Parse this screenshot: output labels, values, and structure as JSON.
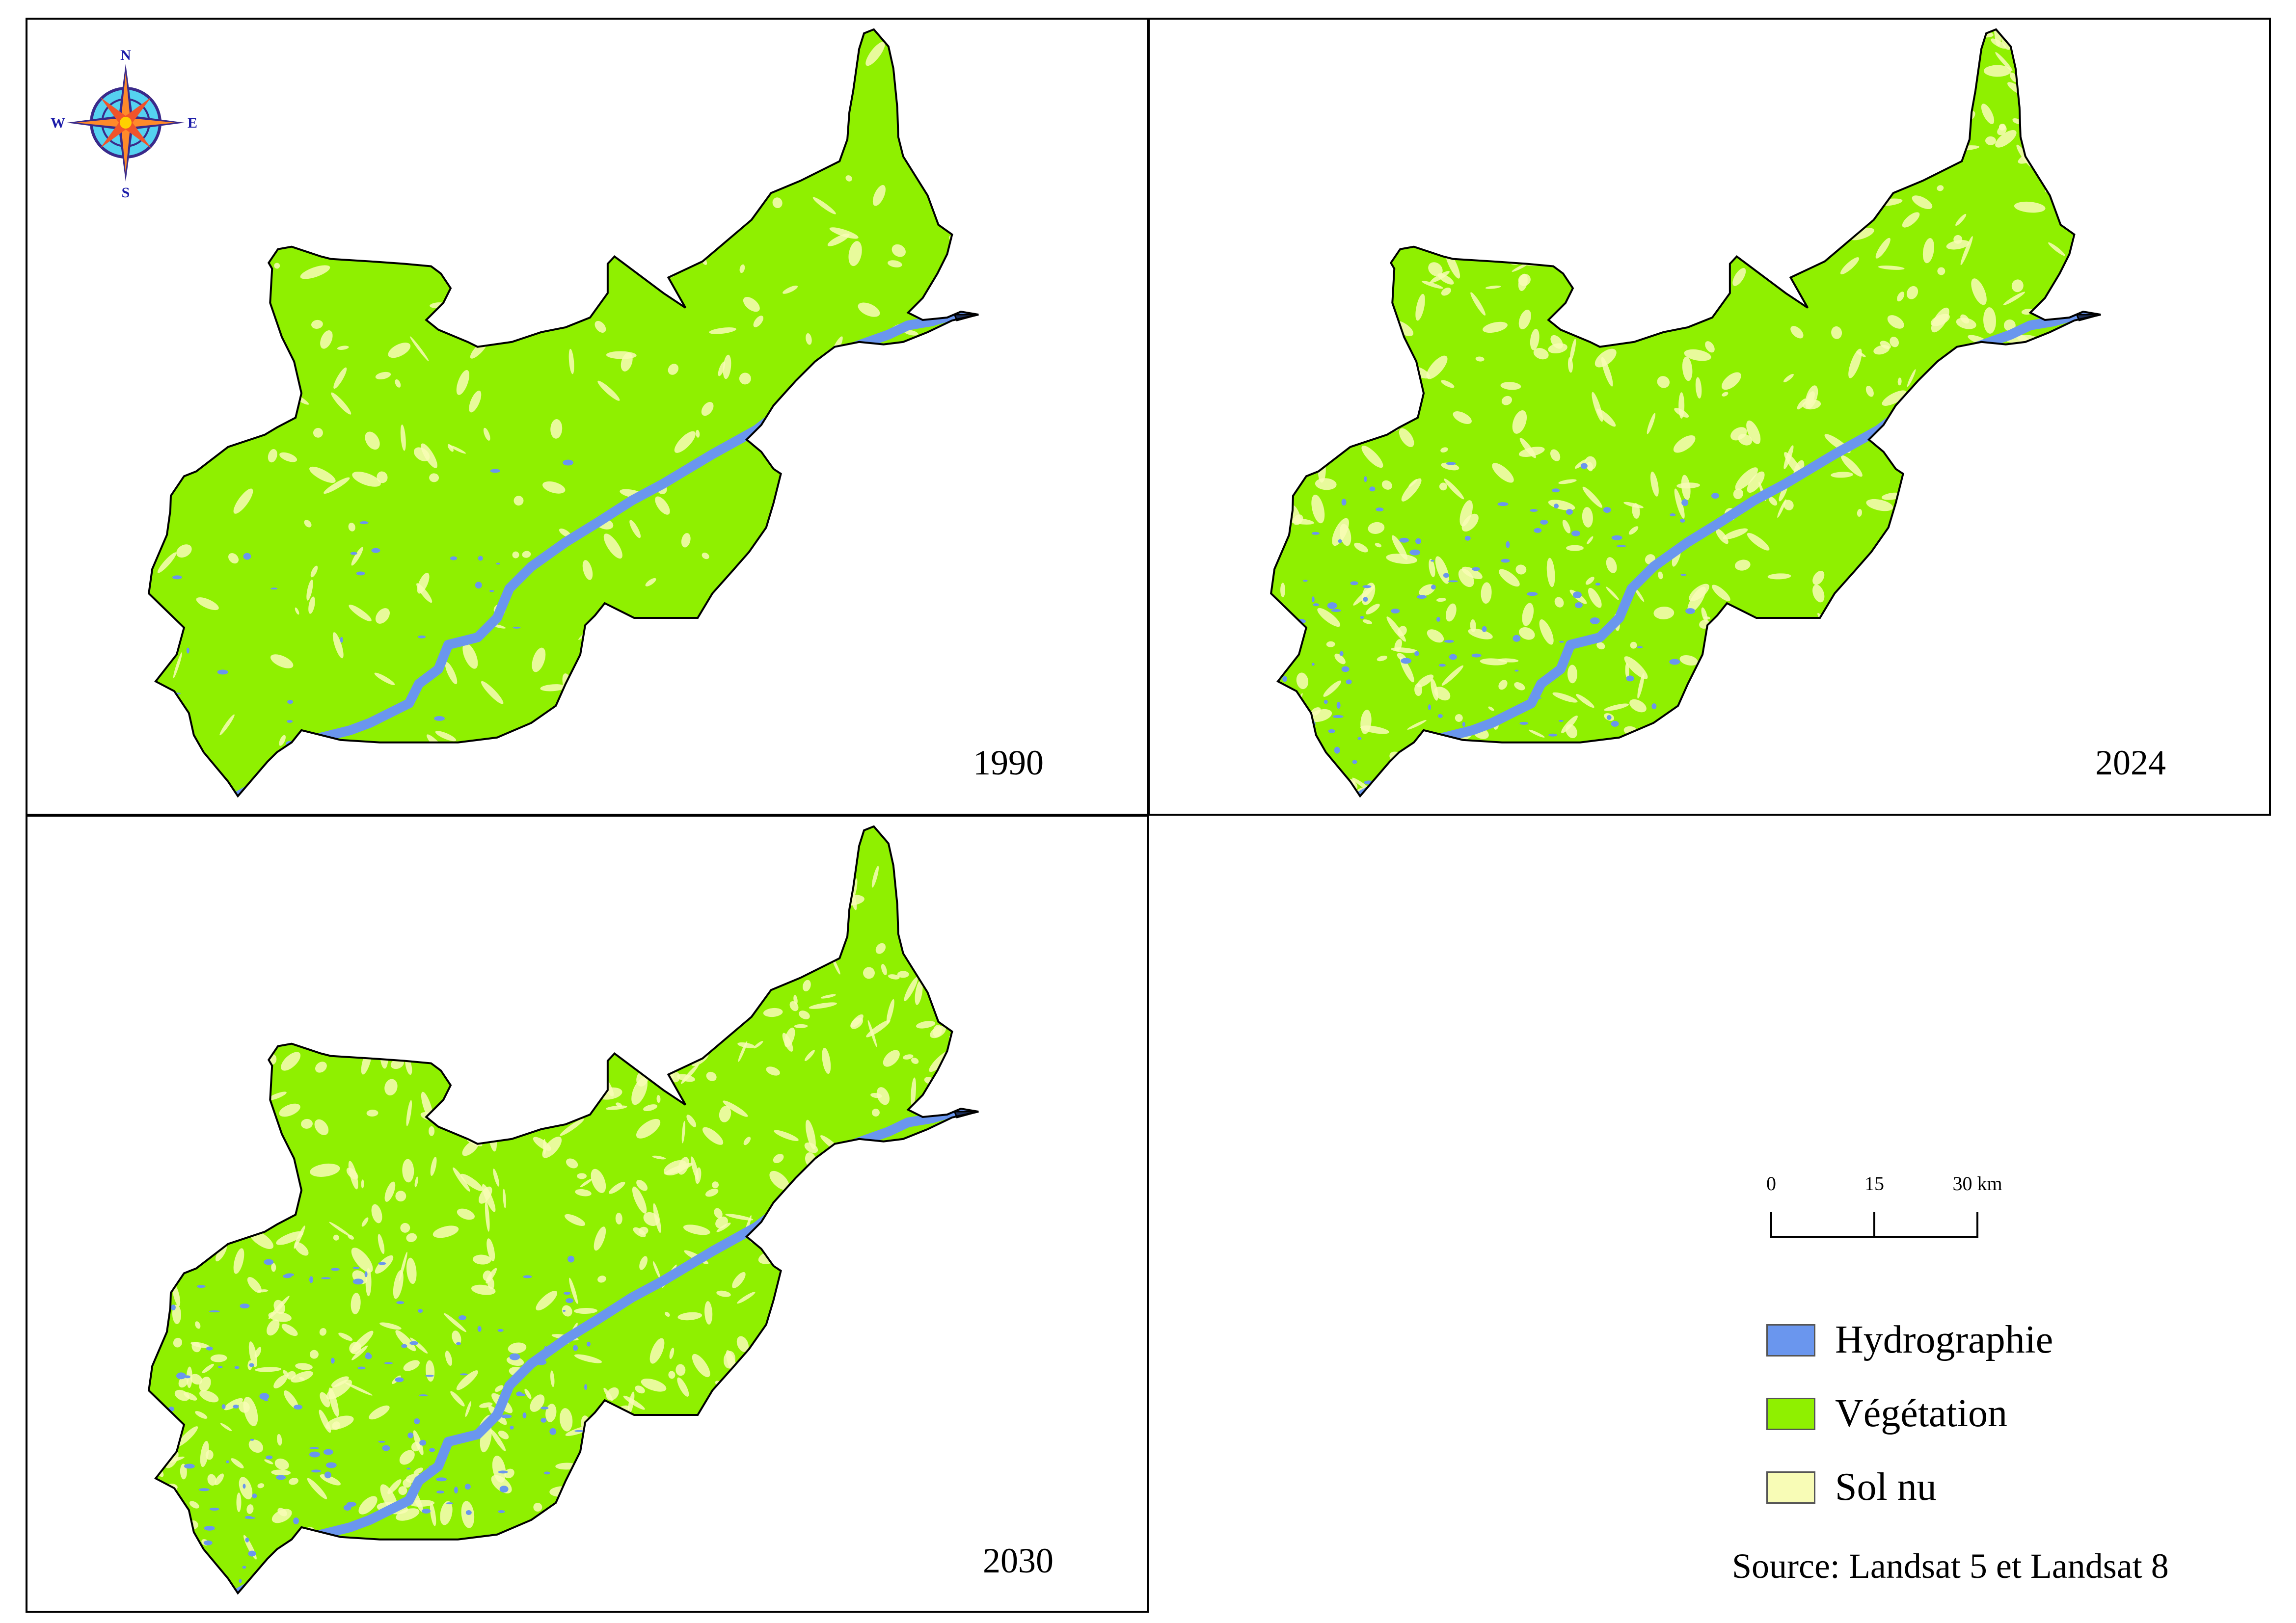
{
  "compass": {
    "north": "N",
    "south": "S",
    "east": "E",
    "west": "W"
  },
  "panels": [
    {
      "year": "1990",
      "sol_nu_density": 0.18,
      "hydro_density": 0.03
    },
    {
      "year": "2024",
      "sol_nu_density": 0.45,
      "hydro_density": 0.12
    },
    {
      "year": "2030",
      "sol_nu_density": 0.55,
      "hydro_density": 0.15
    }
  ],
  "scale": {
    "ticks": [
      "0",
      "15",
      "30 km"
    ]
  },
  "legend": {
    "items": [
      {
        "label": "Hydrographie",
        "color": "#6a96ee"
      },
      {
        "label": "Végétation",
        "color": "#8ff000"
      },
      {
        "label": "Sol nu",
        "color": "#f8fcb6"
      }
    ]
  },
  "source": "Source: Landsat 5 et Landsat 8",
  "colors": {
    "vegetation": "#8ff000",
    "hydro": "#6a96ee",
    "sol_nu": "#f8fcb6",
    "border": "#000000"
  }
}
